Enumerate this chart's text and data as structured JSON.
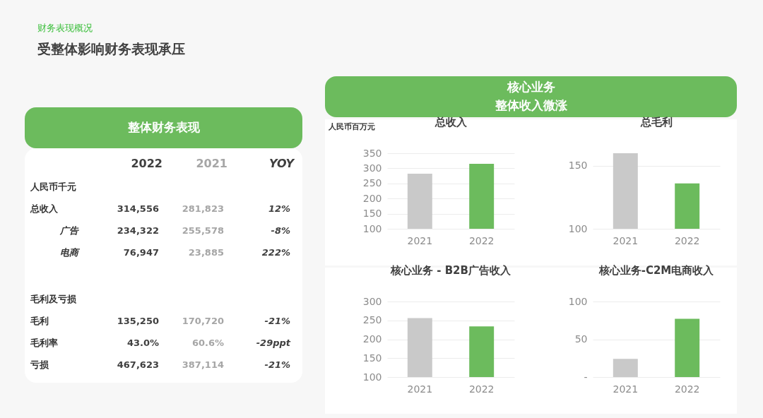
{
  "chart_data": [
    {
      "type": "other",
      "subtitle": "财务表现概况",
      "title": "受整体影响财务表现承压"
    },
    {
      "type": "other",
      "title": "整体财务表现",
      "categories": [
        "2022",
        "2021",
        "YOY"
      ],
      "y_categories": [
        "人民币千元",
        "总收入",
        "广告",
        "电商",
        "毛利及亏损",
        "毛利",
        "毛利率",
        "亏损"
      ],
      "cell_labels": [
        [
          null,
          null,
          null
        ],
        [
          "314,556",
          "281,823",
          "12%"
        ],
        [
          "234,322",
          "255,578",
          "-8%"
        ],
        [
          "76,947",
          "23,885",
          "222%"
        ],
        [
          null,
          null,
          null
        ],
        [
          "135,250",
          "170,720",
          "-21%"
        ],
        [
          "43.0%",
          "60.6%",
          "-29ppt"
        ],
        [
          "467,623",
          "387,114",
          "-21%"
        ]
      ]
    },
    {
      "type": "other",
      "title": "核心业务",
      "subtitle": "整体收入微涨"
    },
    {
      "type": "bar",
      "title": "总收入",
      "ylabel": "人民币百万元",
      "categories": [
        "2021",
        "2022"
      ],
      "values": [
        282,
        315
      ],
      "colors": [
        "#c9c9c9",
        "#6cbb5d"
      ],
      "ylim": [
        100,
        350
      ],
      "yticks": [
        100,
        150,
        200,
        250,
        300,
        350
      ],
      "grid": "y"
    },
    {
      "type": "bar",
      "title": "总毛利",
      "categories": [
        "2021",
        "2022"
      ],
      "values": [
        160,
        136
      ],
      "colors": [
        "#c9c9c9",
        "#6cbb5d"
      ],
      "ylim": [
        100,
        160
      ],
      "yticks": [
        100,
        150
      ],
      "grid": "y"
    },
    {
      "type": "bar",
      "title": "核心业务 - B2B广告收入",
      "categories": [
        "2021",
        "2022"
      ],
      "values": [
        256,
        234
      ],
      "colors": [
        "#c9c9c9",
        "#6cbb5d"
      ],
      "ylim": [
        100,
        300
      ],
      "yticks": [
        100,
        150,
        200,
        250,
        300
      ],
      "grid": "y"
    },
    {
      "type": "bar",
      "title": "核心业务-C2M电商收入",
      "categories": [
        "2021",
        "2022"
      ],
      "values": [
        24,
        77
      ],
      "colors": [
        "#c9c9c9",
        "#6cbb5d"
      ],
      "ylim": [
        0,
        100
      ],
      "yticks": [
        {
          "value": 0,
          "label": "-"
        },
        50,
        100
      ],
      "grid": "y"
    }
  ]
}
